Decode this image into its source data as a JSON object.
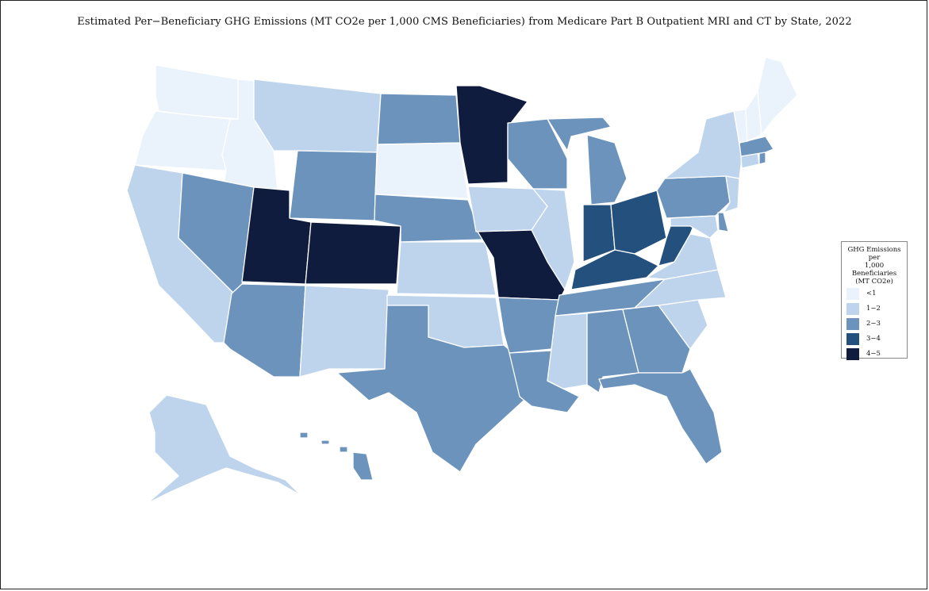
{
  "title": "Estimated Per−Beneficiary GHG Emissions (MT CO2e per 1,000 CMS Beneficiaries) from Medicare Part B Outpatient MRI and CT by State, 2022",
  "legend": {
    "title_lines": [
      "GHG Emissions per",
      "1,000 Beneficiaries",
      "(MT CO2e)"
    ],
    "bins": [
      {
        "label": "<1",
        "color": "#eaf2fb"
      },
      {
        "label": "1−2",
        "color": "#bdd4ec"
      },
      {
        "label": "2−3",
        "color": "#6b93bc"
      },
      {
        "label": "3−4",
        "color": "#24507e"
      },
      {
        "label": "4−5",
        "color": "#0f1c3e"
      }
    ]
  },
  "chart_data": {
    "type": "choropleth",
    "region": "United States",
    "year": 2022,
    "bin_by_state": {
      "WA": "<1",
      "OR": "<1",
      "ID": "<1",
      "SD": "<1",
      "ME": "<1",
      "NH": "<1",
      "VT": "<1",
      "MT": "1−2",
      "CA": "1−2",
      "AK": "1−2",
      "NM": "1−2",
      "KS": "1−2",
      "OK": "1−2",
      "IA": "1−2",
      "IL": "1−2",
      "NY": "1−2",
      "NJ": "1−2",
      "CT": "1−2",
      "VA": "1−2",
      "NC": "1−2",
      "SC": "1−2",
      "MS": "1−2",
      "MD": "1−2",
      "WY": "2−3",
      "NV": "2−3",
      "AZ": "2−3",
      "ND": "2−3",
      "NE": "2−3",
      "TX": "2−3",
      "AR": "2−3",
      "LA": "2−3",
      "WI": "2−3",
      "MI": "2−3",
      "TN": "2−3",
      "AL": "2−3",
      "GA": "2−3",
      "FL": "2−3",
      "PA": "2−3",
      "MA": "2−3",
      "RI": "2−3",
      "DE": "2−3",
      "HI": "2−3",
      "IN": "3−4",
      "OH": "3−4",
      "KY": "3−4",
      "WV": "3−4",
      "MN": "4−5",
      "UT": "4−5",
      "CO": "4−5",
      "MO": "4−5"
    }
  }
}
